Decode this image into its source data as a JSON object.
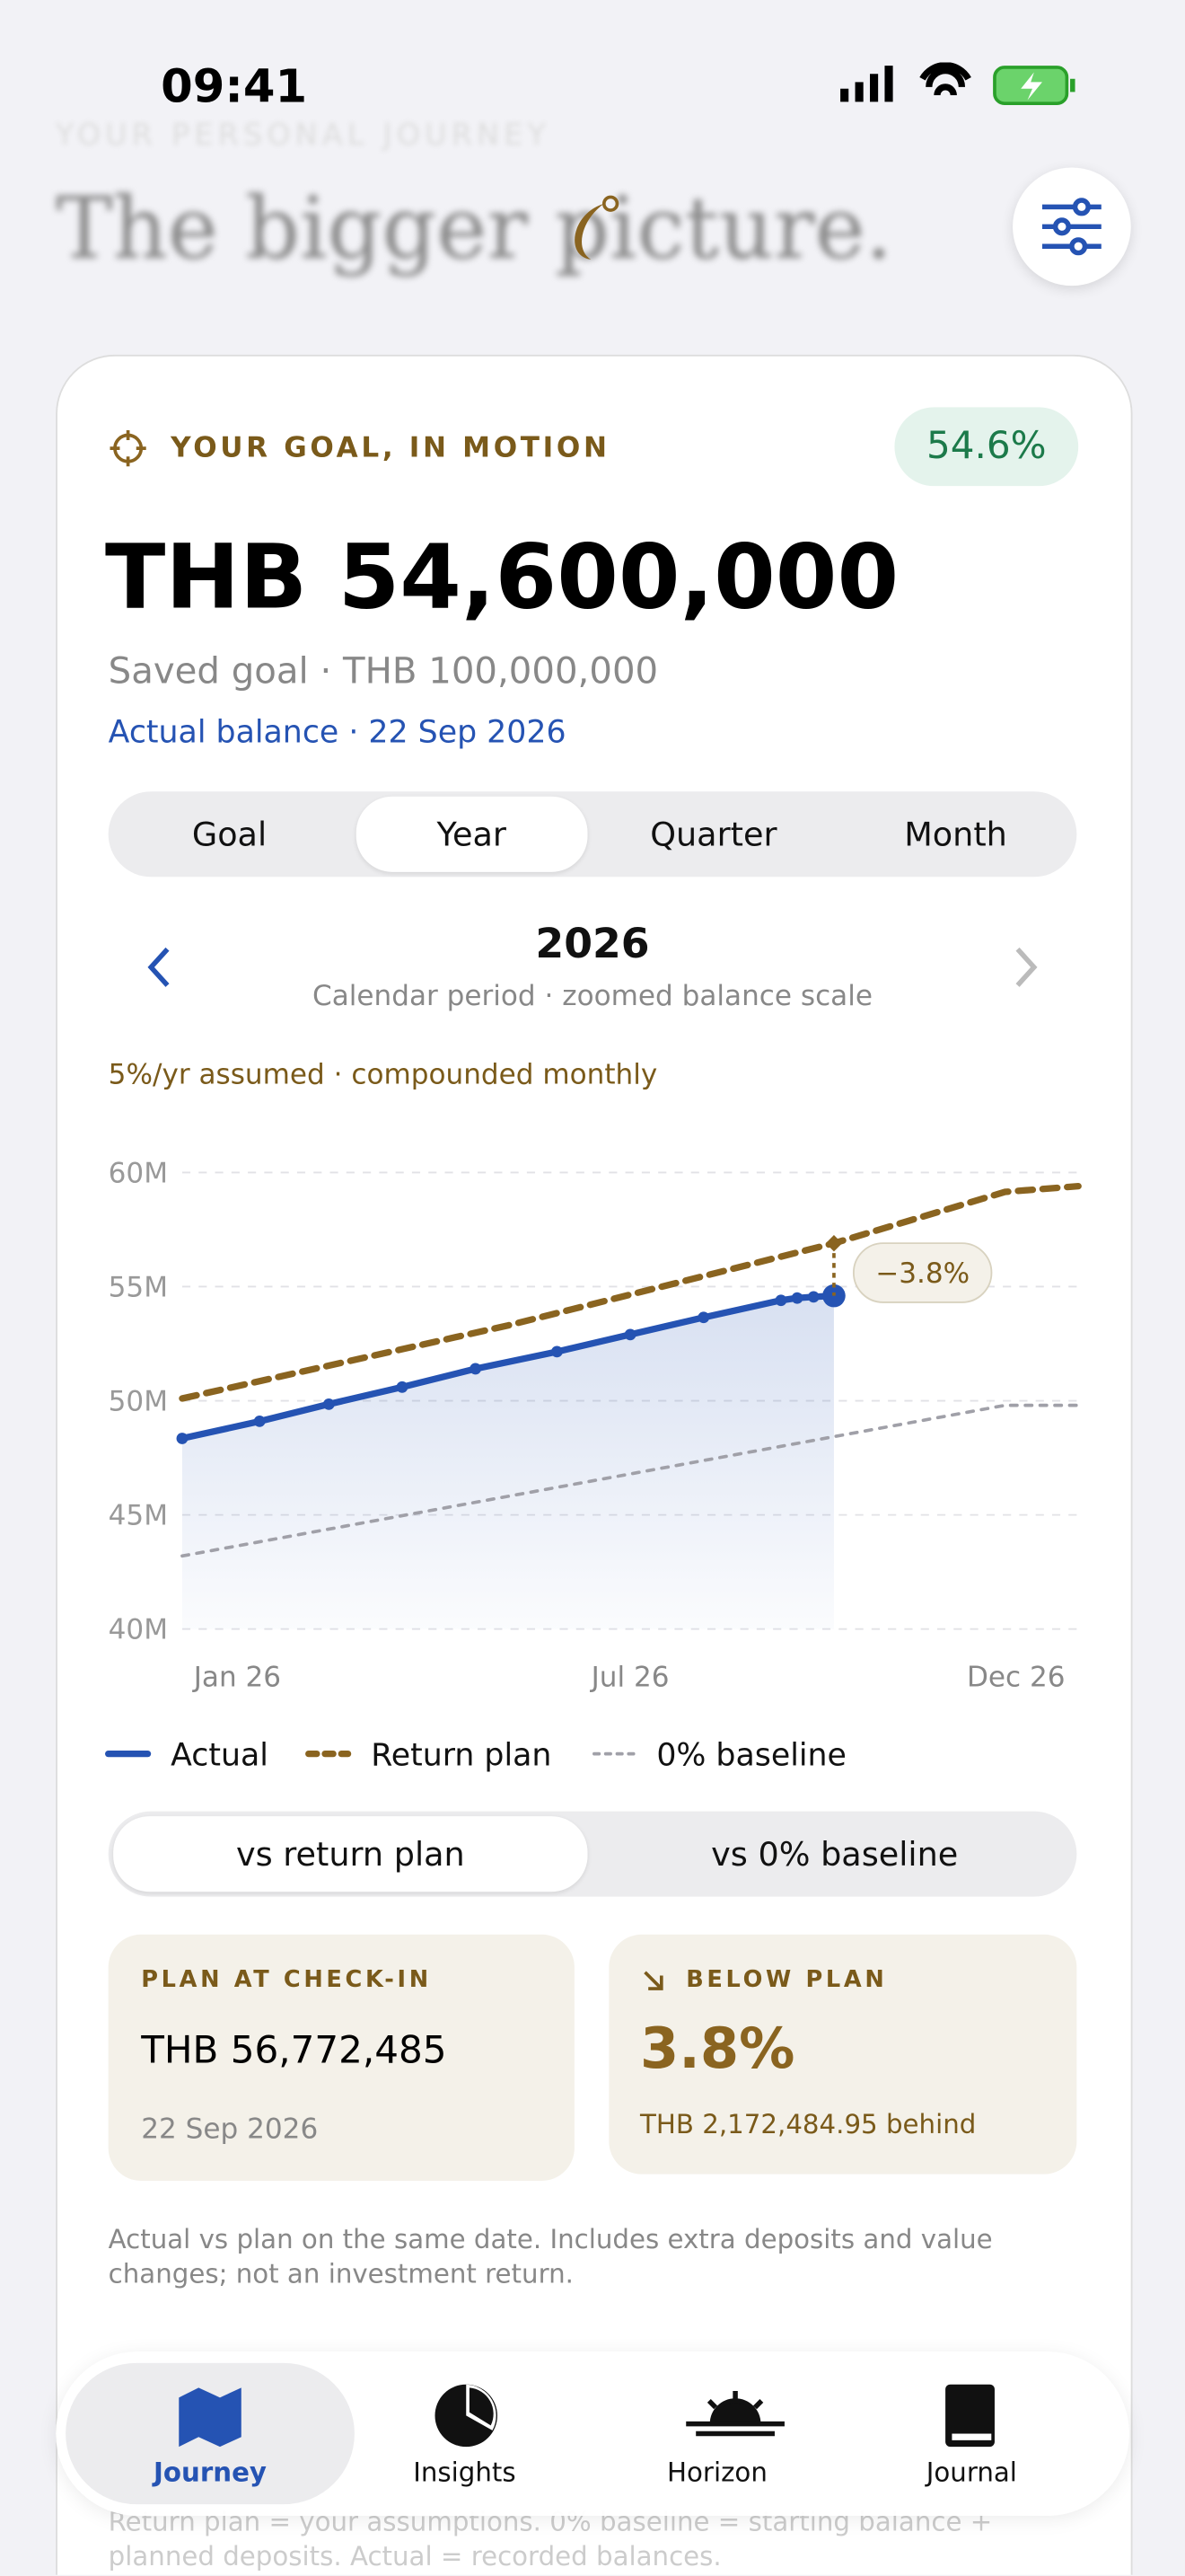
{
  "status_bar": {
    "time": "09:41"
  },
  "header": {
    "eyebrow": "YOUR PERSONAL JOURNEY",
    "title": "The bigger picture."
  },
  "goal_card": {
    "label": "YOUR GOAL, IN MOTION",
    "progress": "54.6%",
    "amount": "THB 54,600,000",
    "saved_goal": "Saved goal · THB 100,000,000",
    "actual_balance": "Actual balance · 22 Sep 2026",
    "tabs": [
      "Goal",
      "Year",
      "Quarter",
      "Month"
    ],
    "selected_tab": 1,
    "period": {
      "title": "2026",
      "subtitle": "Calendar period · zoomed balance scale"
    },
    "assumption": "5%/yr assumed · compounded monthly"
  },
  "chart_data": {
    "type": "line",
    "annotation": "−3.8%",
    "xlim": [
      0,
      11
    ],
    "xticks": [
      {
        "value": 0,
        "label": "Jan 26"
      },
      {
        "value": 5.5,
        "label": "Jul 26"
      },
      {
        "value": 11,
        "label": "Dec 26"
      }
    ],
    "ylim": [
      40000000,
      60000000
    ],
    "yticks": [
      {
        "value": 40000000,
        "label": "40M"
      },
      {
        "value": 45000000,
        "label": "45M"
      },
      {
        "value": 50000000,
        "label": "50M"
      },
      {
        "value": 55000000,
        "label": "55M"
      },
      {
        "value": 60000000,
        "label": "60M"
      }
    ],
    "grid": true,
    "series": [
      {
        "name": "Actual",
        "color": "#2553b3",
        "x": [
          0,
          0.95,
          1.8,
          2.7,
          3.6,
          4.6,
          5.5,
          6.4,
          7.35,
          7.55,
          7.75,
          8
        ],
        "values": [
          48350000,
          49100000,
          49850000,
          50600000,
          51400000,
          52150000,
          52900000,
          53650000,
          54400000,
          54500000,
          54550000,
          54600000
        ]
      },
      {
        "name": "Return plan",
        "color": "#8a6420",
        "x": [
          0,
          4,
          8,
          10.1,
          11
        ],
        "values": [
          50100000,
          53300000,
          56900000,
          59150000,
          59400000
        ]
      },
      {
        "name": "0% baseline",
        "color": "#a0a0a8",
        "x": [
          0,
          10.1,
          11
        ],
        "values": [
          43200000,
          49800000,
          49800000
        ]
      }
    ]
  },
  "compare": {
    "options": [
      "vs return plan",
      "vs 0% baseline"
    ],
    "selected": 0
  },
  "stats": {
    "plan_label": "PLAN AT CHECK-IN",
    "plan_value": "THB 56,772,485",
    "plan_date": "22 Sep 2026",
    "below_label": "BELOW PLAN",
    "below_value": "3.8%",
    "below_detail": "THB 2,172,484.95 behind"
  },
  "note": "Actual vs plan on the same date. Includes extra deposits and value changes; not an investment return.",
  "footnote": "Return plan = your assumptions. 0% baseline = starting balance + planned deposits. Actual = recorded balances.",
  "tab_bar": [
    "Journey",
    "Insights",
    "Horizon",
    "Journal"
  ]
}
